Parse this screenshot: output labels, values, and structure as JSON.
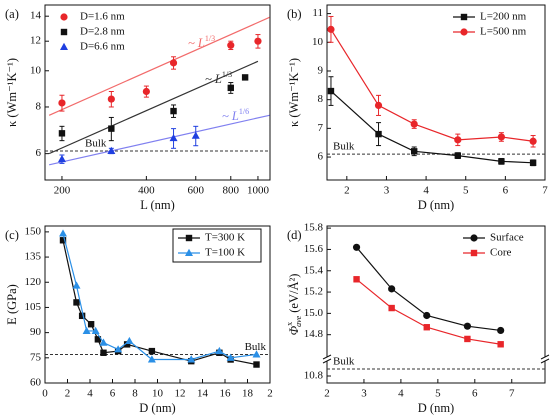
{
  "chart_data": [
    {
      "type": "scatter",
      "panel_label": "(a)",
      "xlabel": "L (nm)",
      "ylabel": "κ (Wm⁻¹K⁻¹)",
      "xscale": "log",
      "yscale": "log",
      "xlim": [
        174,
        1104
      ],
      "ylim": [
        5.1,
        15
      ],
      "xticks": [
        200,
        400,
        600,
        800,
        1000
      ],
      "yticks": [
        6,
        8,
        10,
        12,
        14
      ],
      "legend": "upper left",
      "legend_frame": false,
      "bulk": {
        "value": 6.1,
        "label": "Bulk"
      },
      "series": [
        {
          "name": "D=1.6 nm",
          "color": "#e8262a",
          "marker": "circle",
          "x": [
            200,
            300,
            400,
            500,
            800,
            1000
          ],
          "values": [
            8.2,
            8.4,
            8.8,
            10.5,
            11.7,
            12.0
          ],
          "errors": [
            0.4,
            0.4,
            0.3,
            0.4,
            0.3,
            0.5
          ]
        },
        {
          "name": "D=2.8 nm",
          "color": "#111111",
          "marker": "square",
          "x": [
            200,
            300,
            500,
            800,
            900
          ],
          "values": [
            6.8,
            7.0,
            7.8,
            9.0,
            9.6
          ],
          "errors": [
            0.3,
            0.5,
            0.3,
            0.3,
            0.1
          ]
        },
        {
          "name": "D=6.6 nm",
          "color": "#1f3fe0",
          "marker": "triangle",
          "x": [
            200,
            300,
            500,
            600
          ],
          "values": [
            5.8,
            6.1,
            6.6,
            6.7
          ],
          "errors": [
            0.15,
            0.1,
            0.4,
            0.4
          ]
        }
      ],
      "fits": [
        {
          "x": [
            180,
            1100
          ],
          "values": [
            7.6,
            13.9
          ],
          "color": "#f26b6b",
          "label": "~ L",
          "label_sup": "1/3"
        },
        {
          "x": [
            180,
            1000
          ],
          "values": [
            6.0,
            10.6
          ],
          "color": "#333333",
          "label": "~ L",
          "label_sup": "1/3"
        },
        {
          "x": [
            180,
            1100
          ],
          "values": [
            5.6,
            7.6
          ],
          "color": "#8080f0",
          "label": "~ L",
          "label_sup": "1/6"
        }
      ]
    },
    {
      "type": "line",
      "panel_label": "(b)",
      "xlabel": "D (nm)",
      "ylabel": "κ (Wm⁻¹K⁻¹)",
      "xscale": "linear",
      "yscale": "linear",
      "xlim": [
        1.5,
        7
      ],
      "ylim": [
        5.2,
        11.3
      ],
      "xticks": [
        2,
        3,
        4,
        5,
        6,
        7
      ],
      "yticks": [
        6,
        7,
        8,
        9,
        10,
        11
      ],
      "legend": "upper right",
      "legend_frame": false,
      "bulk": {
        "value": 6.1,
        "label": "Bulk"
      },
      "series": [
        {
          "name": "L=200 nm",
          "color": "#111111",
          "marker": "square",
          "x": [
            1.6,
            2.8,
            3.7,
            4.8,
            5.9,
            6.7
          ],
          "values": [
            8.3,
            6.8,
            6.2,
            6.05,
            5.85,
            5.8
          ],
          "errors": [
            0.5,
            0.4,
            0.15,
            0.1,
            0.1,
            0.1
          ]
        },
        {
          "name": "L=500 nm",
          "color": "#e8262a",
          "marker": "circle",
          "x": [
            1.6,
            2.8,
            3.7,
            4.8,
            5.9,
            6.7
          ],
          "values": [
            10.45,
            7.8,
            7.15,
            6.6,
            6.7,
            6.55
          ],
          "errors": [
            0.45,
            0.35,
            0.15,
            0.2,
            0.15,
            0.2
          ]
        }
      ]
    },
    {
      "type": "line",
      "panel_label": "(c)",
      "xlabel": "D (nm)",
      "ylabel": "E (GPa)",
      "xscale": "linear",
      "yscale": "linear",
      "xlim": [
        0,
        20
      ],
      "ylim": [
        60,
        153.5
      ],
      "xticks": [
        0,
        2,
        4,
        6,
        8,
        10,
        12,
        14,
        16,
        18,
        {
          "value": 20,
          "label": "2"
        }
      ],
      "yticks": [
        60,
        75,
        90,
        105,
        120,
        135,
        150
      ],
      "legend": "upper right",
      "legend_frame": true,
      "bulk": {
        "value": 77,
        "label": "Bulk"
      },
      "series": [
        {
          "name": "T=300 K",
          "color": "#111111",
          "marker": "square",
          "x": [
            1.6,
            2.8,
            3.3,
            4.1,
            4.7,
            5.2,
            6.5,
            7.3,
            9.5,
            13,
            15.5,
            16.5,
            18.8
          ],
          "values": [
            145,
            108,
            100,
            95,
            86,
            78,
            79,
            83,
            79,
            73,
            78,
            74,
            71
          ]
        },
        {
          "name": "T=100 K",
          "color": "#2a8fe6",
          "marker": "triangle",
          "x": [
            1.6,
            2.8,
            3.7,
            4.5,
            5.2,
            6.5,
            7.5,
            9.5,
            13,
            15.5,
            16.5,
            18.8
          ],
          "values": [
            149,
            118,
            91,
            91,
            84,
            80,
            85,
            74,
            74,
            79,
            75,
            77
          ]
        }
      ]
    },
    {
      "type": "line",
      "panel_label": "(d)",
      "xlabel": "D (nm)",
      "ylabel": {
        "symbol": "Φ",
        "sup": "x",
        "sub": "ave",
        "unit": "(eV/Å²)"
      },
      "xscale": "linear",
      "yscale": "linear",
      "xlim": [
        2,
        7.9
      ],
      "ylim": [
        14.6,
        15.82
      ],
      "ylim_lower": [
        10.7,
        11.0
      ],
      "xticks": [
        2,
        3,
        4,
        5,
        6,
        7
      ],
      "yticks": [
        10.8,
        14.8,
        {
          "value": 15,
          "label": "15.0"
        },
        15.2,
        15.4,
        15.6,
        15.8
      ],
      "legend": "upper right",
      "legend_frame": false,
      "bulk": {
        "value": 10.9,
        "label": "Bulk"
      },
      "series": [
        {
          "name": "Surface",
          "color": "#111111",
          "marker": "circle",
          "x": [
            2.8,
            3.75,
            4.7,
            5.8,
            6.7
          ],
          "values": [
            15.62,
            15.23,
            14.98,
            14.88,
            14.84
          ]
        },
        {
          "name": "Core",
          "color": "#e8262a",
          "marker": "square",
          "x": [
            2.8,
            3.75,
            4.7,
            5.8,
            6.7
          ],
          "values": [
            15.32,
            15.05,
            14.87,
            14.76,
            14.71
          ]
        }
      ]
    }
  ]
}
